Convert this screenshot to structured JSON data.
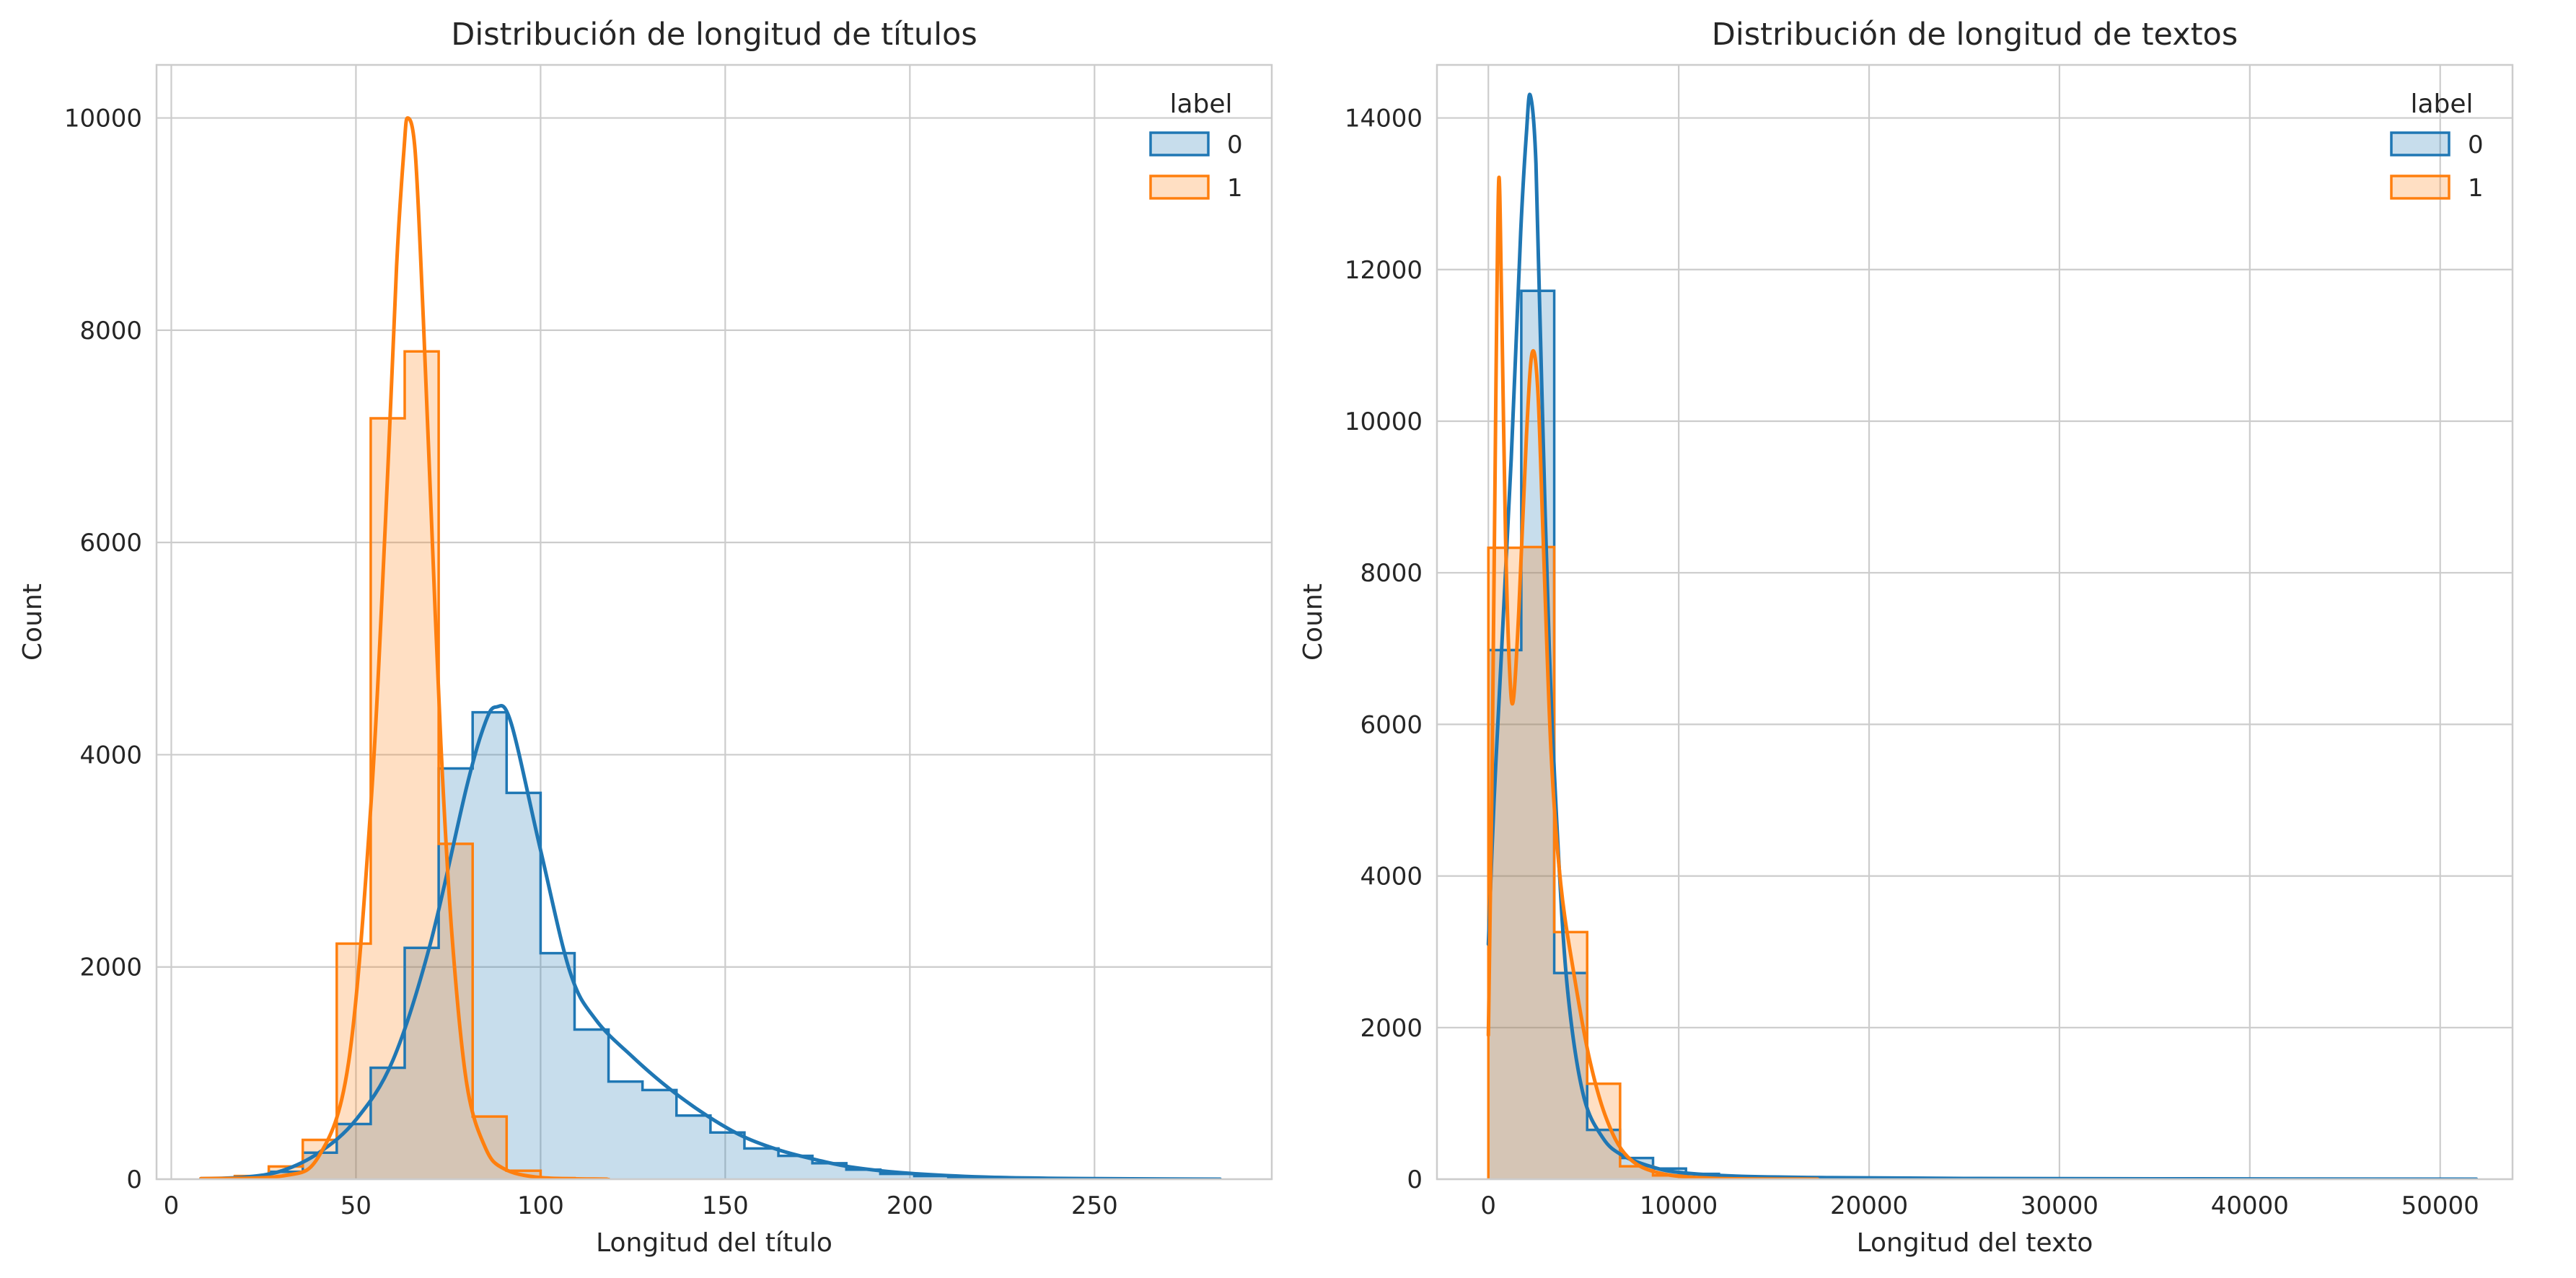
{
  "colors": {
    "label_0": "#1f77b4",
    "label_1": "#ff7f0e",
    "grid": "#cccccc",
    "frame": "#cccccc"
  },
  "chart_data": [
    {
      "type": "histogram",
      "title": "Distribución de longitud de títulos",
      "xlabel": "Longitud del título",
      "ylabel": "Count",
      "xlim": [
        -4,
        298
      ],
      "ylim": [
        0,
        10500
      ],
      "xticks": [
        0,
        50,
        100,
        150,
        200,
        250
      ],
      "yticks": [
        0,
        2000,
        4000,
        6000,
        8000,
        10000
      ],
      "grid": true,
      "kde": true,
      "legend": {
        "title": "label",
        "entries": [
          "0",
          "1"
        ],
        "placement": "top-right"
      },
      "series": [
        {
          "name": "0",
          "bin_edges": [
            8,
            17.2,
            26.4,
            35.6,
            44.8,
            54,
            63.2,
            72.4,
            81.6,
            90.8,
            100,
            109.2,
            118.4,
            127.6,
            136.8,
            146,
            155.2,
            164.4,
            173.6,
            182.8,
            192,
            201.2,
            210.4,
            219.6,
            228.8,
            238,
            247.2,
            256.4,
            265.6,
            274.8,
            284
          ],
          "counts": [
            5,
            20,
            70,
            250,
            520,
            1050,
            2180,
            3870,
            4400,
            3640,
            2130,
            1410,
            920,
            840,
            600,
            440,
            290,
            220,
            150,
            90,
            50,
            30,
            20,
            12,
            8,
            5,
            3,
            2,
            1,
            1
          ],
          "kde_x": [
            8,
            20,
            30,
            40,
            50,
            60,
            70,
            80,
            85,
            88,
            92,
            100,
            108,
            115,
            125,
            135,
            145,
            155,
            165,
            175,
            185,
            200,
            220,
            240,
            260,
            284
          ],
          "kde_y": [
            5,
            20,
            80,
            250,
            560,
            1120,
            2200,
            3700,
            4300,
            4450,
            4300,
            3100,
            1950,
            1500,
            1150,
            850,
            600,
            400,
            270,
            180,
            110,
            55,
            20,
            8,
            3,
            0
          ]
        },
        {
          "name": "1",
          "bin_edges": [
            8,
            17.2,
            26.4,
            35.6,
            44.8,
            54,
            63.2,
            72.4,
            81.6,
            90.8,
            100,
            109.2,
            118.4
          ],
          "counts": [
            5,
            30,
            120,
            370,
            2220,
            7170,
            7800,
            3160,
            590,
            80,
            10,
            2
          ],
          "kde_x": [
            8,
            30,
            40,
            48,
            54,
            58,
            61,
            63,
            64,
            66,
            68,
            70,
            73,
            76,
            80,
            85,
            90,
            100,
            118
          ],
          "kde_y": [
            5,
            30,
            220,
            1100,
            3500,
            6200,
            8600,
            9700,
            10000,
            9700,
            8300,
            6600,
            4100,
            2300,
            900,
            300,
            100,
            15,
            0
          ]
        }
      ]
    },
    {
      "type": "histogram",
      "title": "Distribución de longitud de textos",
      "xlabel": "Longitud del texto",
      "ylabel": "Count",
      "xlim": [
        -2700,
        53800
      ],
      "ylim": [
        0,
        14700
      ],
      "xticks": [
        0,
        10000,
        20000,
        30000,
        40000,
        50000
      ],
      "yticks": [
        0,
        2000,
        4000,
        6000,
        8000,
        10000,
        12000,
        14000
      ],
      "grid": true,
      "kde": true,
      "legend": {
        "title": "label",
        "entries": [
          "0",
          "1"
        ],
        "placement": "top-right"
      },
      "series": [
        {
          "name": "0",
          "bin_edges": [
            0,
            1730,
            3460,
            5190,
            6920,
            8650,
            10380,
            12110,
            13840,
            15570,
            17300,
            19030,
            20760,
            22490,
            24220,
            25950,
            27680,
            29410,
            31140,
            32870,
            34600,
            36330,
            38060,
            39790,
            41520,
            43250,
            44980,
            46710,
            48440,
            50170,
            51900
          ],
          "counts": [
            6980,
            11720,
            2720,
            650,
            280,
            140,
            70,
            40,
            25,
            15,
            10,
            8,
            6,
            5,
            4,
            4,
            3,
            3,
            2,
            2,
            2,
            1,
            1,
            1,
            1,
            1,
            1,
            1,
            1,
            1
          ],
          "kde_x": [
            0,
            300,
            700,
            1200,
            1700,
            2000,
            2200,
            2500,
            2800,
            3200,
            3700,
            4200,
            5000,
            6000,
            7000,
            8500,
            10000,
            13000,
            18000,
            25000,
            35000,
            51900
          ],
          "kde_y": [
            3100,
            5000,
            7000,
            9500,
            12500,
            13800,
            14300,
            13400,
            10500,
            7000,
            4200,
            2400,
            1100,
            550,
            320,
            170,
            90,
            40,
            20,
            10,
            5,
            0
          ]
        },
        {
          "name": "1",
          "bin_edges": [
            0,
            1730,
            3460,
            5190,
            6920,
            8650,
            10380,
            12110,
            13840,
            15570,
            17300
          ],
          "counts": [
            8330,
            8340,
            3260,
            1260,
            170,
            50,
            20,
            8,
            3,
            1
          ],
          "kde_x": [
            0,
            200,
            400,
            550,
            700,
            900,
            1100,
            1300,
            1600,
            2000,
            2300,
            2600,
            2900,
            3300,
            3800,
            4500,
            5300,
            6200,
            7300,
            9000,
            12000,
            17300
          ],
          "kde_y": [
            1900,
            5500,
            10500,
            13200,
            11500,
            8500,
            6800,
            6300,
            7500,
            9800,
            10900,
            10400,
            8300,
            5600,
            3900,
            2700,
            1600,
            800,
            300,
            80,
            10,
            0
          ]
        }
      ]
    }
  ]
}
